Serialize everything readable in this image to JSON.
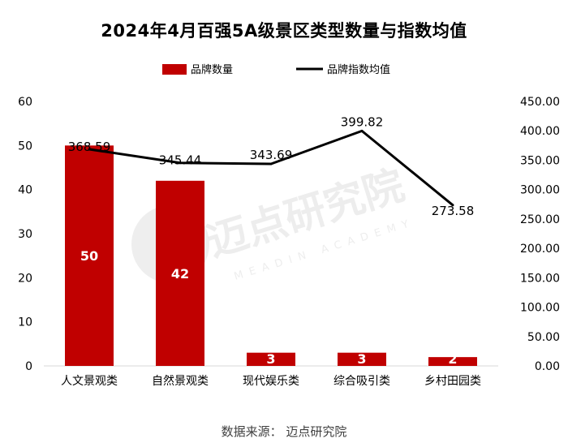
{
  "chart_data": {
    "type": "bar",
    "title": "2024年4月百强5A级景区类型数量与指数均值",
    "categories": [
      "人文景观类",
      "自然景观类",
      "现代娱乐类",
      "综合吸引类",
      "乡村田园类"
    ],
    "series": [
      {
        "name": "品牌数量",
        "type": "bar",
        "axis": "left",
        "color": "#C00000",
        "values": [
          50,
          42,
          3,
          3,
          2
        ],
        "labels": [
          "50",
          "42",
          "3",
          "3",
          "2"
        ]
      },
      {
        "name": "品牌指数均值",
        "type": "line",
        "axis": "right",
        "color": "#000000",
        "values": [
          368.59,
          345.44,
          343.69,
          399.82,
          273.58
        ],
        "labels": [
          "368.59",
          "345.44",
          "343.69",
          "399.82",
          "273.58"
        ]
      }
    ],
    "y_left": {
      "min": 0,
      "max": 60,
      "step": 10,
      "ticks": [
        "0",
        "10",
        "20",
        "30",
        "40",
        "50",
        "60"
      ]
    },
    "y_right": {
      "min": 0,
      "max": 450,
      "step": 50,
      "ticks": [
        "0.00",
        "50.00",
        "100.00",
        "150.00",
        "200.00",
        "250.00",
        "300.00",
        "350.00",
        "400.00",
        "450.00"
      ]
    },
    "legend_position": "top",
    "grid": false
  },
  "watermark": {
    "cn": "迈点研究院",
    "en": "MEADIN ACADEMY"
  },
  "source_note": "数据来源： 迈点研究院"
}
